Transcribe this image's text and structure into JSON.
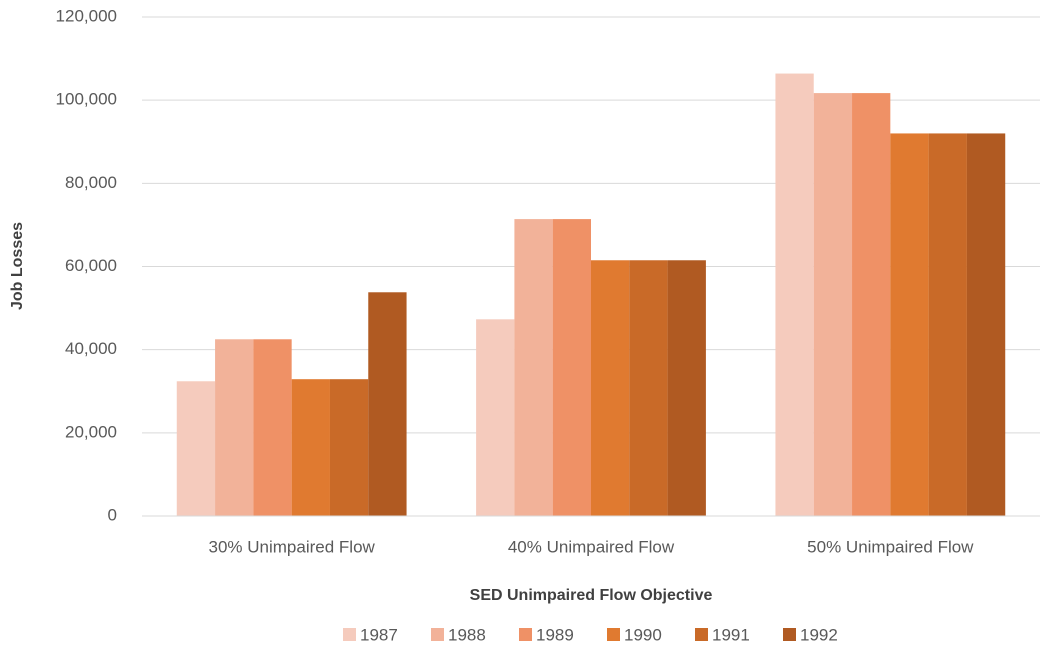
{
  "chart_data": {
    "type": "bar",
    "x_label": "SED Unimpaired Flow Objective",
    "y_label": "Job Losses",
    "categories": [
      "30% Unimpaired Flow",
      "40% Unimpaired Flow",
      "50% Unimpaired Flow"
    ],
    "series": [
      {
        "name": "1987",
        "color": "#f5cbbd",
        "values": [
          32400,
          47300,
          106400
        ]
      },
      {
        "name": "1988",
        "color": "#f2b299",
        "values": [
          42500,
          71400,
          101700
        ]
      },
      {
        "name": "1989",
        "color": "#ef9166",
        "values": [
          42500,
          71400,
          101700
        ]
      },
      {
        "name": "1990",
        "color": "#e07a30",
        "values": [
          32900,
          61500,
          92000
        ]
      },
      {
        "name": "1991",
        "color": "#c96a28",
        "values": [
          32900,
          61500,
          92000
        ]
      },
      {
        "name": "1992",
        "color": "#b05a22",
        "values": [
          53800,
          61500,
          92000
        ]
      }
    ],
    "ylim": [
      0,
      120000
    ],
    "yticks": [
      0,
      {
        "value": 20000,
        "label": "20,000"
      },
      {
        "value": 40000,
        "label": "40,000"
      },
      {
        "value": 60000,
        "label": "60,000"
      },
      {
        "value": 80000,
        "label": "80,000"
      },
      {
        "value": 100000,
        "label": "100,000"
      },
      {
        "value": 120000,
        "label": "120,000"
      }
    ],
    "grid": true,
    "legend": "bottom"
  }
}
